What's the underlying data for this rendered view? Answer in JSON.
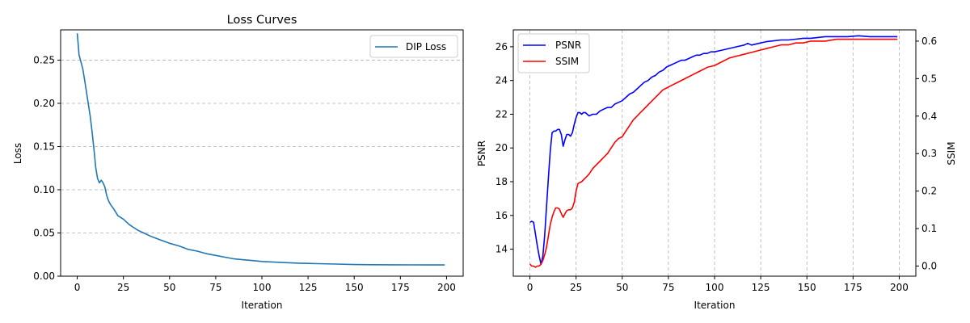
{
  "chart_data": [
    {
      "type": "line",
      "title": "Loss Curves",
      "xlabel": "Iteration",
      "ylabel": "Loss",
      "xlim": [
        -9,
        209
      ],
      "ylim": [
        0,
        0.285
      ],
      "xticks": [
        0,
        25,
        50,
        75,
        100,
        125,
        150,
        175,
        200
      ],
      "yticks": [
        0.0,
        0.05,
        0.1,
        0.15,
        0.2,
        0.25
      ],
      "ytick_labels": [
        "0.00",
        "0.05",
        "0.10",
        "0.15",
        "0.20",
        "0.25"
      ],
      "grid": "y-dashed",
      "legend": "upper right",
      "series": [
        {
          "name": "DIP Loss",
          "color": "#1f77b4",
          "x": [
            0,
            1,
            2,
            3,
            4,
            5,
            6,
            7,
            8,
            9,
            10,
            11,
            12,
            13,
            14,
            15,
            16,
            17,
            18,
            20,
            22,
            25,
            28,
            30,
            33,
            36,
            40,
            45,
            50,
            55,
            60,
            65,
            70,
            75,
            80,
            85,
            90,
            95,
            100,
            110,
            120,
            130,
            140,
            150,
            160,
            170,
            180,
            190,
            199
          ],
          "y": [
            0.281,
            0.256,
            0.248,
            0.24,
            0.227,
            0.213,
            0.199,
            0.185,
            0.168,
            0.148,
            0.126,
            0.113,
            0.108,
            0.111,
            0.108,
            0.103,
            0.093,
            0.087,
            0.083,
            0.077,
            0.07,
            0.066,
            0.06,
            0.057,
            0.053,
            0.05,
            0.046,
            0.042,
            0.038,
            0.035,
            0.031,
            0.029,
            0.026,
            0.024,
            0.022,
            0.02,
            0.019,
            0.018,
            0.017,
            0.016,
            0.015,
            0.0145,
            0.014,
            0.0135,
            0.0133,
            0.0132,
            0.0131,
            0.013,
            0.013
          ]
        }
      ]
    },
    {
      "type": "line",
      "xlabel": "Iteration",
      "ylabel": "PSNR",
      "ylabel_right": "SSIM",
      "xlim": [
        -9,
        209
      ],
      "ylim": [
        12.4,
        27.0
      ],
      "ylim_right": [
        -0.027,
        0.63
      ],
      "xticks": [
        0,
        25,
        50,
        75,
        100,
        125,
        150,
        175,
        200
      ],
      "yticks": [
        14,
        16,
        18,
        20,
        22,
        24,
        26
      ],
      "yticks_right": [
        0.0,
        0.1,
        0.2,
        0.3,
        0.4,
        0.5,
        0.6
      ],
      "ytick_labels_right": [
        "0.0",
        "0.1",
        "0.2",
        "0.3",
        "0.4",
        "0.5",
        "0.6"
      ],
      "grid": "x-dashed",
      "legend": "upper left",
      "series": [
        {
          "name": "PSNR",
          "axis": "left",
          "color": "#0000ff",
          "x": [
            0,
            1,
            2,
            3,
            4,
            5,
            6,
            7,
            8,
            9,
            10,
            11,
            12,
            13,
            14,
            15,
            16,
            17,
            18,
            19,
            20,
            21,
            22,
            23,
            24,
            25,
            26,
            27,
            28,
            29,
            30,
            32,
            34,
            36,
            38,
            40,
            42,
            44,
            46,
            48,
            50,
            52,
            54,
            56,
            58,
            60,
            62,
            64,
            66,
            68,
            70,
            72,
            74,
            76,
            78,
            80,
            82,
            84,
            86,
            88,
            90,
            92,
            94,
            96,
            98,
            100,
            104,
            108,
            112,
            116,
            118,
            120,
            124,
            128,
            132,
            136,
            140,
            144,
            148,
            152,
            156,
            160,
            166,
            172,
            178,
            184,
            190,
            196,
            199
          ],
          "y": [
            15.6,
            15.65,
            15.6,
            14.9,
            14.2,
            13.6,
            13.1,
            13.6,
            14.8,
            16.5,
            18.2,
            19.8,
            20.9,
            21.0,
            21.0,
            21.1,
            21.1,
            20.8,
            20.1,
            20.5,
            20.8,
            20.8,
            20.7,
            20.9,
            21.4,
            21.8,
            22.1,
            22.1,
            22.0,
            22.1,
            22.1,
            21.9,
            22.0,
            22.0,
            22.2,
            22.3,
            22.4,
            22.4,
            22.6,
            22.7,
            22.8,
            23.0,
            23.2,
            23.3,
            23.5,
            23.7,
            23.9,
            24.0,
            24.2,
            24.3,
            24.5,
            24.6,
            24.8,
            24.9,
            25.0,
            25.1,
            25.2,
            25.2,
            25.3,
            25.4,
            25.5,
            25.5,
            25.6,
            25.6,
            25.7,
            25.7,
            25.8,
            25.9,
            26.0,
            26.1,
            26.2,
            26.1,
            26.2,
            26.3,
            26.35,
            26.4,
            26.4,
            26.45,
            26.5,
            26.5,
            26.55,
            26.6,
            26.6,
            26.6,
            26.65,
            26.6,
            26.6,
            26.6,
            26.6
          ]
        },
        {
          "name": "SSIM",
          "axis": "right",
          "color": "#ff0000",
          "x": [
            0,
            1,
            2,
            3,
            4,
            5,
            6,
            7,
            8,
            9,
            10,
            11,
            12,
            13,
            14,
            15,
            16,
            17,
            18,
            19,
            20,
            21,
            22,
            23,
            24,
            25,
            26,
            28,
            30,
            32,
            34,
            36,
            38,
            40,
            42,
            44,
            46,
            48,
            50,
            52,
            54,
            56,
            58,
            60,
            62,
            64,
            66,
            68,
            70,
            72,
            74,
            76,
            78,
            80,
            84,
            88,
            92,
            96,
            100,
            104,
            108,
            112,
            116,
            120,
            124,
            128,
            132,
            136,
            140,
            144,
            148,
            152,
            156,
            160,
            166,
            172,
            178,
            184,
            190,
            196,
            199
          ],
          "y": [
            0.005,
            0.0,
            0.0,
            -0.003,
            0.0,
            0.0,
            0.005,
            0.015,
            0.03,
            0.05,
            0.08,
            0.11,
            0.13,
            0.145,
            0.155,
            0.155,
            0.152,
            0.14,
            0.13,
            0.14,
            0.148,
            0.15,
            0.15,
            0.155,
            0.17,
            0.2,
            0.22,
            0.225,
            0.235,
            0.245,
            0.26,
            0.27,
            0.28,
            0.29,
            0.3,
            0.315,
            0.33,
            0.34,
            0.345,
            0.36,
            0.375,
            0.39,
            0.4,
            0.41,
            0.42,
            0.43,
            0.44,
            0.45,
            0.46,
            0.47,
            0.475,
            0.48,
            0.485,
            0.49,
            0.5,
            0.51,
            0.52,
            0.53,
            0.535,
            0.545,
            0.555,
            0.56,
            0.565,
            0.57,
            0.575,
            0.58,
            0.585,
            0.59,
            0.59,
            0.595,
            0.595,
            0.6,
            0.6,
            0.6,
            0.605,
            0.605,
            0.605,
            0.605,
            0.605,
            0.605,
            0.605
          ]
        }
      ]
    }
  ]
}
